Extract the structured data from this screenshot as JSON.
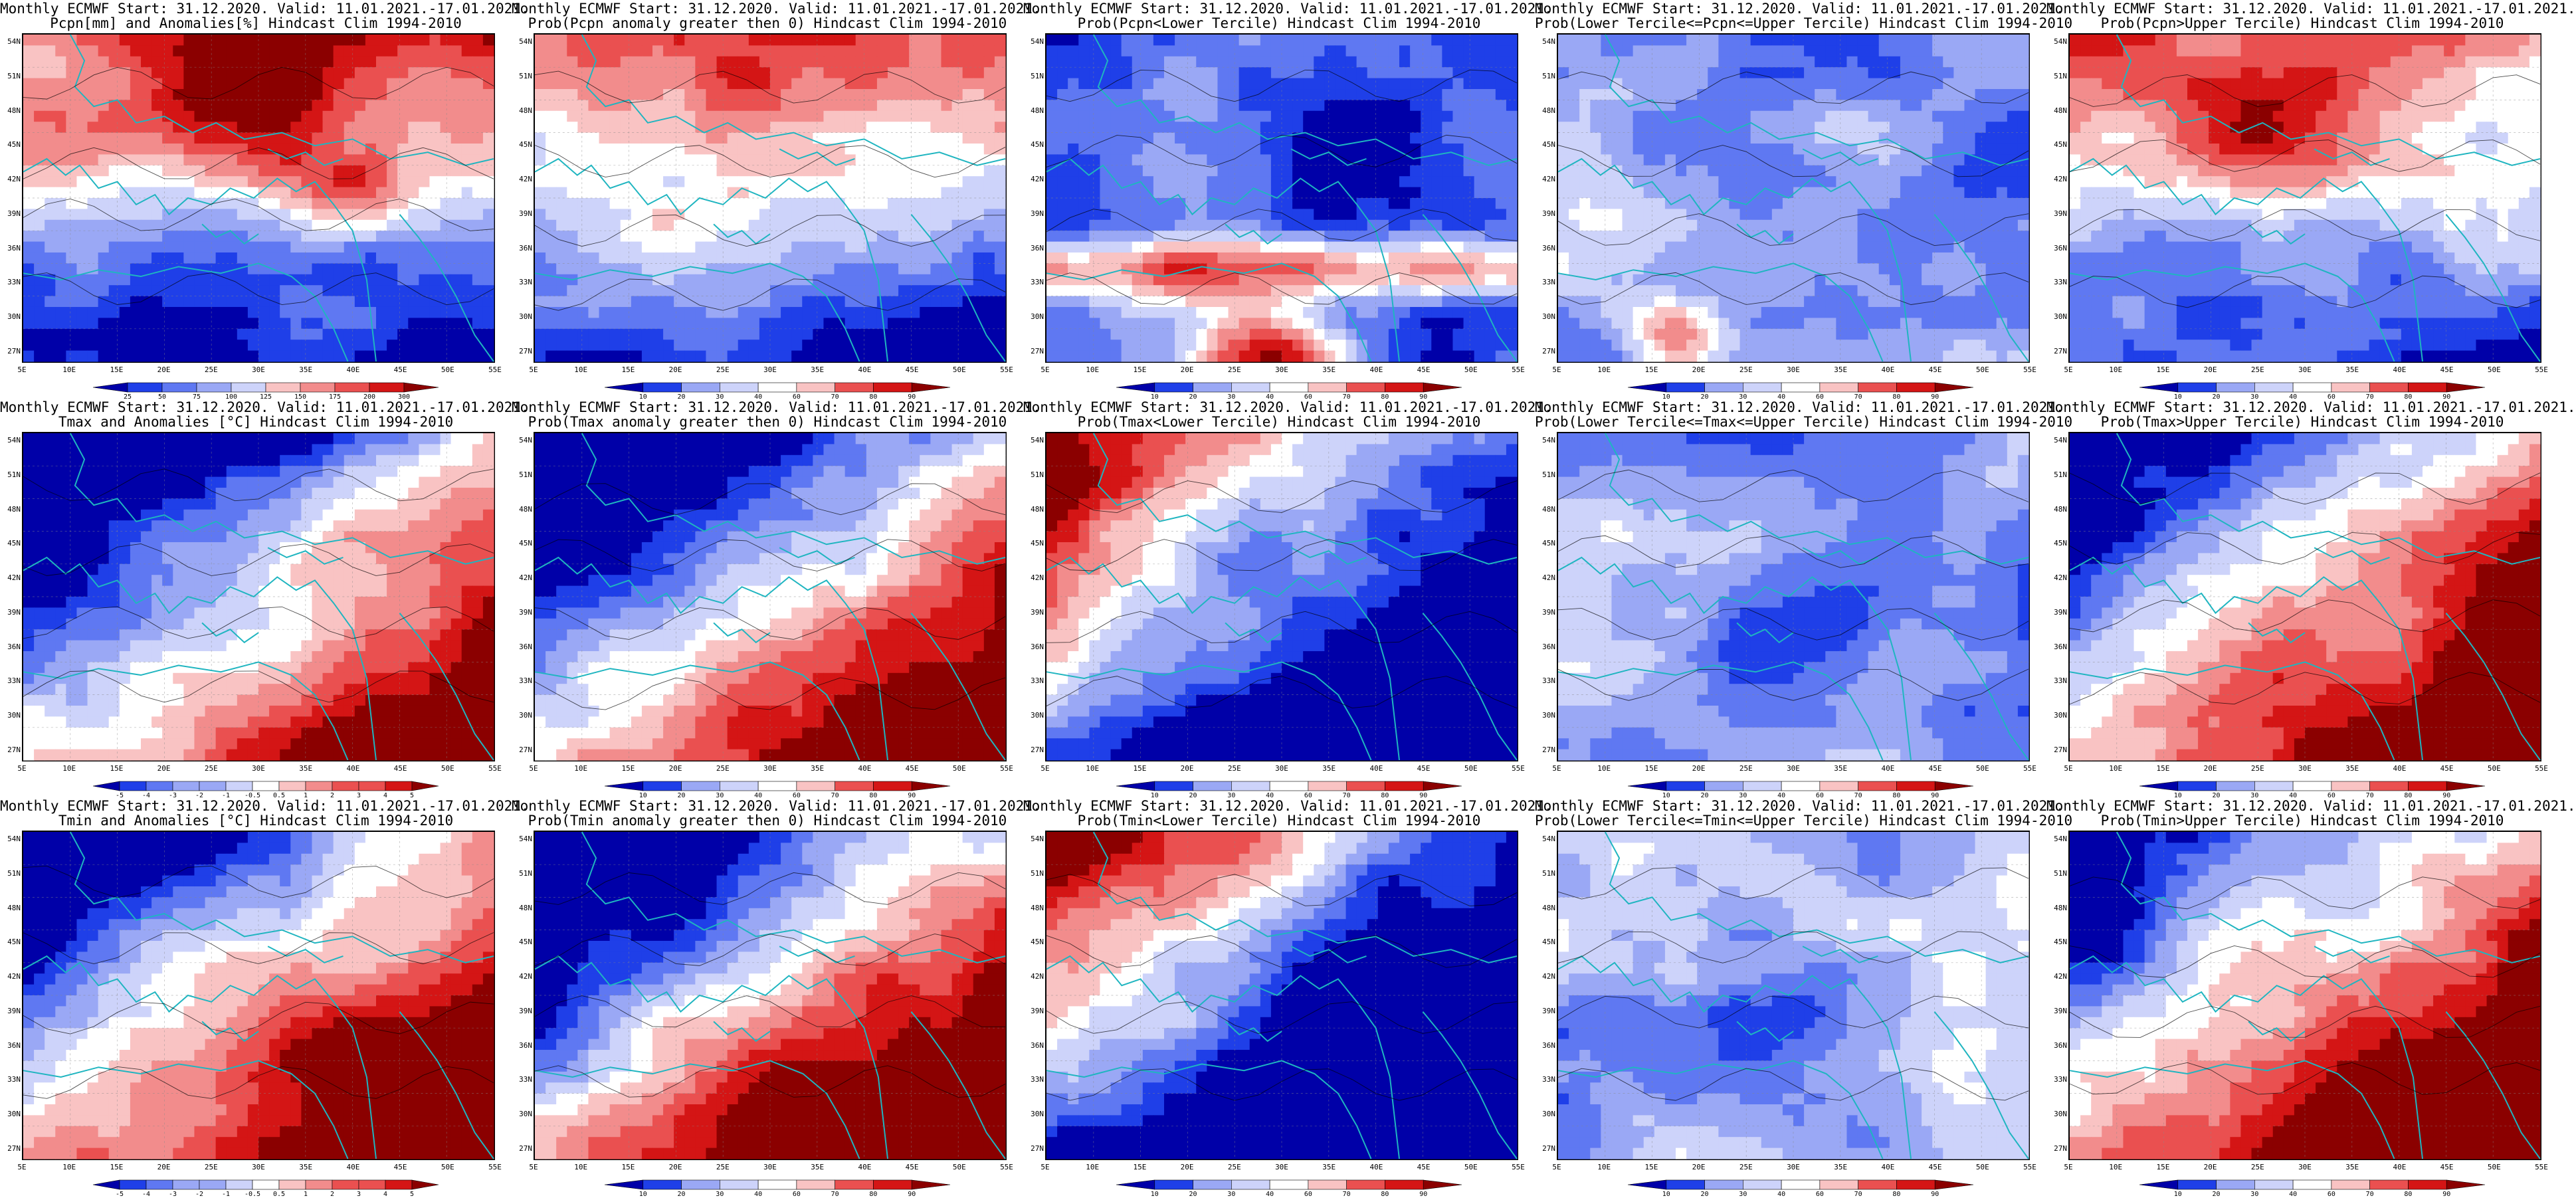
{
  "figure": {
    "rows": [
      {
        "variable": "Pcpn",
        "panels": [
          {
            "title_line1": "Monthly ECMWF Start: 31.12.2020. Valid: 11.01.2021.-17.01.2021.",
            "title_line2": "Pcpn[mm] and Anomalies[%] Hindcast Clim 1994-2010",
            "field": "precip-anomaly",
            "colorbar_ticks": [
              "25",
              "50",
              "75",
              "100",
              "125",
              "150",
              "175",
              "200",
              "300"
            ]
          },
          {
            "title_line1": "Monthly ECMWF Start: 31.12.2020. Valid: 11.01.2021.-17.01.2021.",
            "title_line2": "Prob(Pcpn anomaly greater then 0) Hindcast Clim 1994-2010",
            "field": "precip-prob-positive",
            "colorbar_ticks": [
              "10",
              "20",
              "30",
              "40",
              "60",
              "70",
              "80",
              "90"
            ]
          },
          {
            "title_line1": "Monthly ECMWF Start: 31.12.2020. Valid: 11.01.2021.-17.01.2021.",
            "title_line2": "Prob(Pcpn<Lower Tercile) Hindcast Clim 1994-2010",
            "field": "precip-prob-lower",
            "colorbar_ticks": [
              "10",
              "20",
              "30",
              "40",
              "60",
              "70",
              "80",
              "90"
            ]
          },
          {
            "title_line1": "Monthly ECMWF Start: 31.12.2020. Valid: 11.01.2021.-17.01.2021.",
            "title_line2": "Prob(Lower Tercile<=Pcpn<=Upper Tercile) Hindcast Clim 1994-2010",
            "field": "precip-prob-middle",
            "colorbar_ticks": [
              "10",
              "20",
              "30",
              "40",
              "60",
              "70",
              "80",
              "90"
            ]
          },
          {
            "title_line1": "Monthly ECMWF Start: 31.12.2020. Valid: 11.01.2021.-17.01.2021.",
            "title_line2": "Prob(Pcpn>Upper Tercile) Hindcast Clim 1994-2010",
            "field": "precip-prob-upper",
            "colorbar_ticks": [
              "10",
              "20",
              "30",
              "40",
              "60",
              "70",
              "80",
              "90"
            ]
          }
        ]
      },
      {
        "variable": "Tmax",
        "panels": [
          {
            "title_line1": "Monthly ECMWF Start: 31.12.2020. Valid: 11.01.2021.-17.01.2021.",
            "title_line2": "Tmax and Anomalies [°C] Hindcast Clim 1994-2010",
            "field": "tmax-anomaly",
            "colorbar_ticks": [
              "-5",
              "-4",
              "-3",
              "-2",
              "-1",
              "-0.5",
              "0.5",
              "1",
              "2",
              "3",
              "4",
              "5"
            ]
          },
          {
            "title_line1": "Monthly ECMWF Start: 31.12.2020. Valid: 11.01.2021.-17.01.2021.",
            "title_line2": "Prob(Tmax anomaly greater then 0) Hindcast Clim 1994-2010",
            "field": "tmax-prob-positive",
            "colorbar_ticks": [
              "10",
              "20",
              "30",
              "40",
              "60",
              "70",
              "80",
              "90"
            ]
          },
          {
            "title_line1": "Monthly ECMWF Start: 31.12.2020. Valid: 11.01.2021.-17.01.2021.",
            "title_line2": "Prob(Tmax<Lower Tercile) Hindcast Clim 1994-2010",
            "field": "tmax-prob-lower",
            "colorbar_ticks": [
              "10",
              "20",
              "30",
              "40",
              "60",
              "70",
              "80",
              "90"
            ]
          },
          {
            "title_line1": "Monthly ECMWF Start: 31.12.2020. Valid: 11.01.2021.-17.01.2021.",
            "title_line2": "Prob(Lower Tercile<=Tmax<=Upper Tercile) Hindcast Clim 1994-2010",
            "field": "tmax-prob-middle",
            "colorbar_ticks": [
              "10",
              "20",
              "30",
              "40",
              "60",
              "70",
              "80",
              "90"
            ]
          },
          {
            "title_line1": "Monthly ECMWF Start: 31.12.2020. Valid: 11.01.2021.-17.01.2021.",
            "title_line2": "Prob(Tmax>Upper Tercile) Hindcast Clim 1994-2010",
            "field": "tmax-prob-upper",
            "colorbar_ticks": [
              "10",
              "20",
              "30",
              "40",
              "60",
              "70",
              "80",
              "90"
            ]
          }
        ]
      },
      {
        "variable": "Tmin",
        "panels": [
          {
            "title_line1": "Monthly ECMWF Start: 31.12.2020. Valid: 11.01.2021.-17.01.2021.",
            "title_line2": "Tmin and Anomalies [°C] Hindcast Clim 1994-2010",
            "field": "tmin-anomaly",
            "colorbar_ticks": [
              "-5",
              "-4",
              "-3",
              "-2",
              "-1",
              "-0.5",
              "0.5",
              "1",
              "2",
              "3",
              "4",
              "5"
            ]
          },
          {
            "title_line1": "Monthly ECMWF Start: 31.12.2020. Valid: 11.01.2021.-17.01.2021.",
            "title_line2": "Prob(Tmin anomaly greater then 0) Hindcast Clim 1994-2010",
            "field": "tmin-prob-positive",
            "colorbar_ticks": [
              "10",
              "20",
              "30",
              "40",
              "60",
              "70",
              "80",
              "90"
            ]
          },
          {
            "title_line1": "Monthly ECMWF Start: 31.12.2020. Valid: 11.01.2021.-17.01.2021.",
            "title_line2": "Prob(Tmin<Lower Tercile) Hindcast Clim 1994-2010",
            "field": "tmin-prob-lower",
            "colorbar_ticks": [
              "10",
              "20",
              "30",
              "40",
              "60",
              "70",
              "80",
              "90"
            ]
          },
          {
            "title_line1": "Monthly ECMWF Start: 31.12.2020. Valid: 11.01.2021.-17.01.2021.",
            "title_line2": "Prob(Lower Tercile<=Tmin<=Upper Tercile) Hindcast Clim 1994-2010",
            "field": "tmin-prob-middle",
            "colorbar_ticks": [
              "10",
              "20",
              "30",
              "40",
              "60",
              "70",
              "80",
              "90"
            ]
          },
          {
            "title_line1": "Monthly ECMWF Start: 31.12.2020. Valid: 11.01.2021.-17.01.2021.",
            "title_line2": "Prob(Tmin>Upper Tercile) Hindcast Clim 1994-2010",
            "field": "tmin-prob-upper",
            "colorbar_ticks": [
              "10",
              "20",
              "30",
              "40",
              "60",
              "70",
              "80",
              "90"
            ]
          }
        ]
      }
    ],
    "map_axes": {
      "lon_labels": [
        "5E",
        "10E",
        "15E",
        "20E",
        "25E",
        "30E",
        "35E",
        "40E",
        "45E",
        "50E",
        "55E"
      ],
      "lat_labels": [
        "54N",
        "51N",
        "48N",
        "45N",
        "42N",
        "39N",
        "36N",
        "33N",
        "30N",
        "27N"
      ],
      "lon_range_deg": [
        5,
        55
      ],
      "lat_range_deg": [
        25,
        55
      ]
    },
    "colors": {
      "palette": [
        "#0000a8",
        "#1f3fe8",
        "#5f78f2",
        "#9aa8f5",
        "#cdd3fa",
        "#ffffff",
        "#f9c3c3",
        "#f28c8c",
        "#ea5050",
        "#d41515",
        "#8b0000"
      ],
      "coastline": "#1fb5c0",
      "contour": "#000000"
    }
  }
}
